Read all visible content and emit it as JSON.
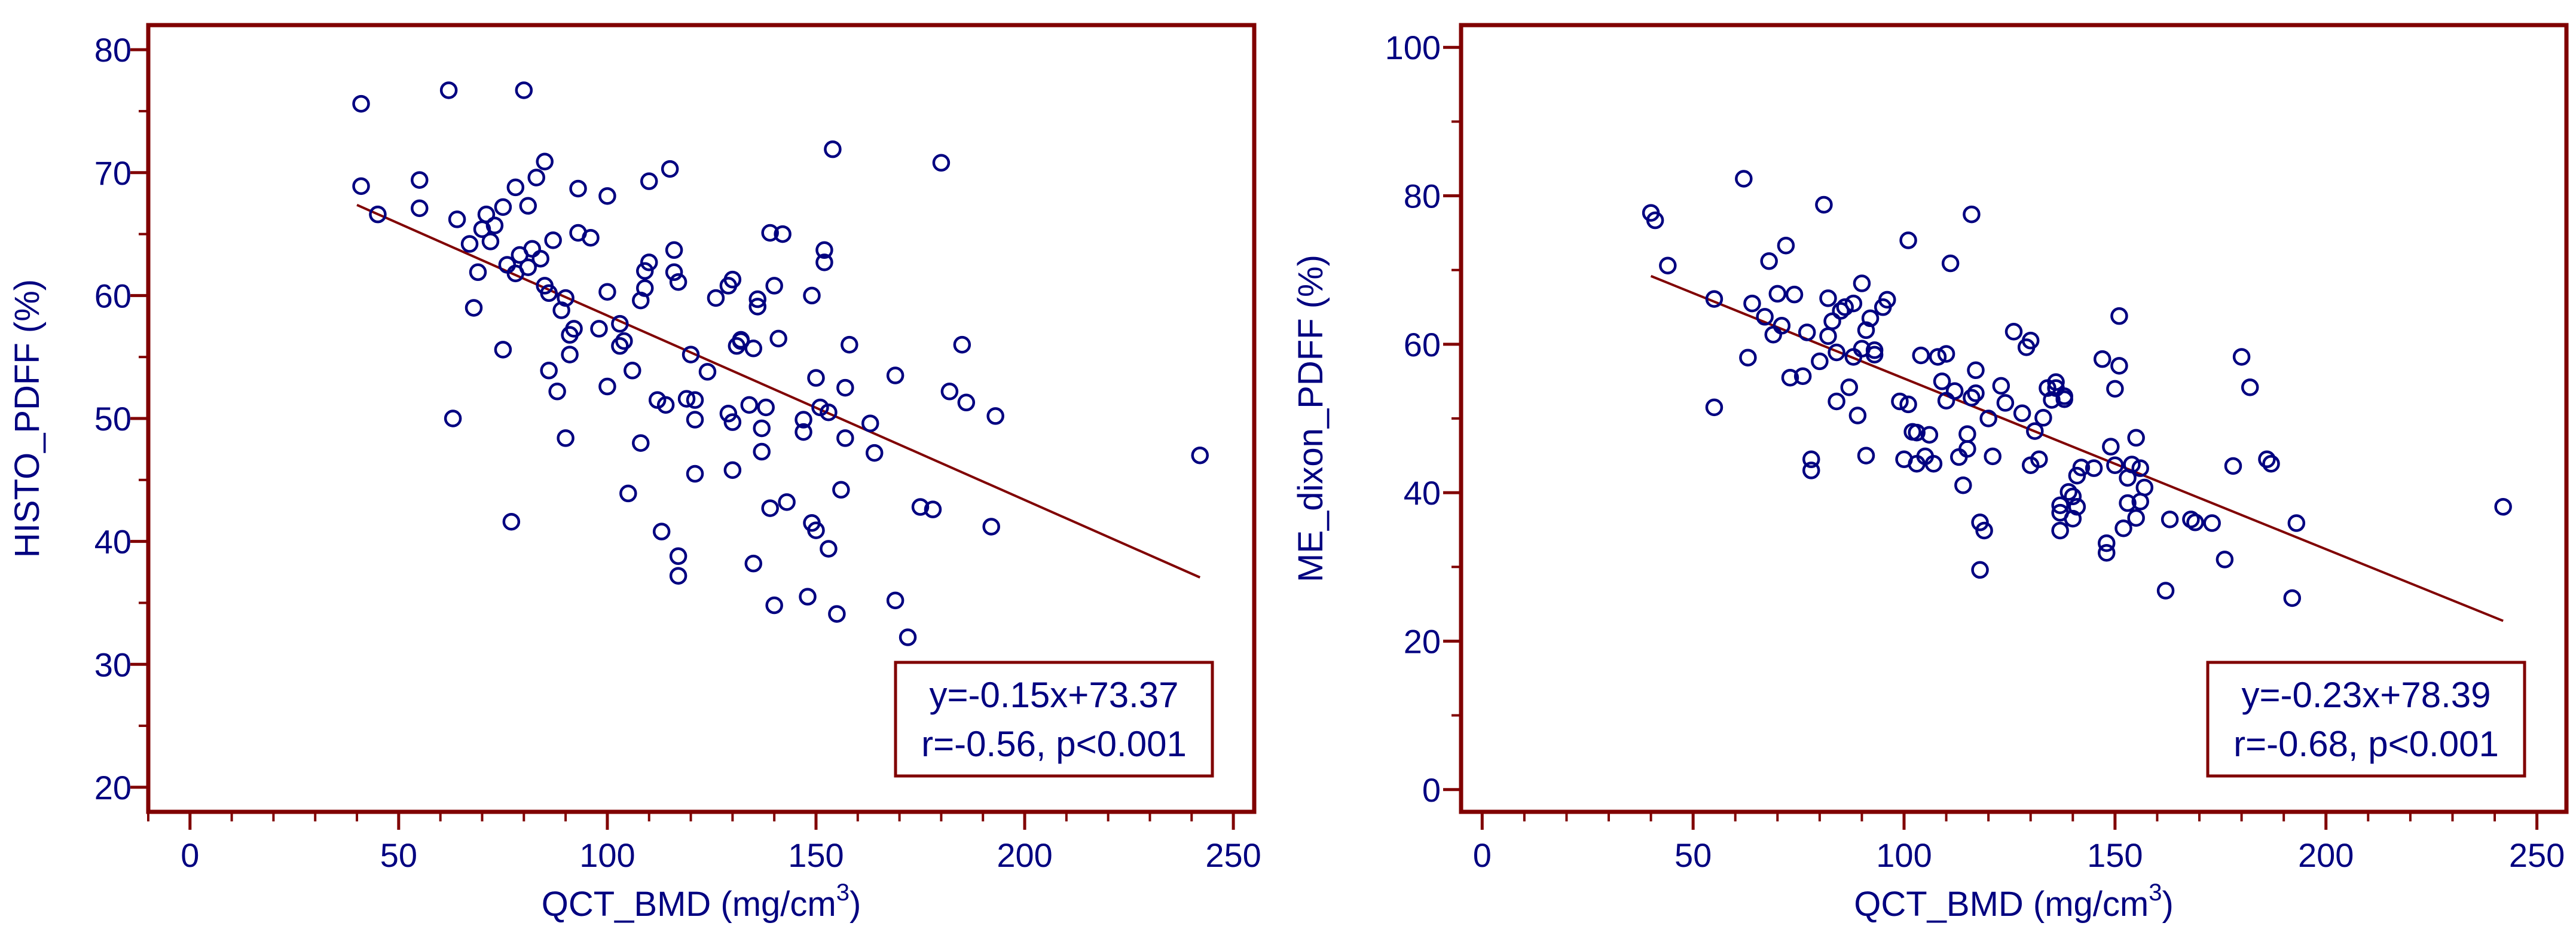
{
  "colors": {
    "frame": "#800000",
    "text": "#000080",
    "points": "#000080",
    "fit_line": "#800000"
  },
  "chart_data": [
    {
      "type": "scatter",
      "xlabel": "QCT_BMD (mg/cm",
      "xlabel_sup": "3",
      "xlabel_end": ")",
      "ylabel": "HISTO_PDFF (%)",
      "xlim": [
        -10,
        255
      ],
      "ylim": [
        18,
        82
      ],
      "xticks": [
        "0",
        "50",
        "100",
        "150",
        "200",
        "250"
      ],
      "xtick_values": [
        0,
        50,
        100,
        150,
        200,
        250
      ],
      "yticks": [
        "20",
        "30",
        "40",
        "50",
        "60",
        "70",
        "80"
      ],
      "ytick_values": [
        20,
        30,
        40,
        50,
        60,
        70,
        80
      ],
      "grid": false,
      "fit": {
        "slope": -0.15,
        "intercept": 73.37,
        "x_range": [
          40,
          242
        ]
      },
      "annotation": [
        "y=-0.15x+73.37",
        "r=-0.56, p<0.001"
      ],
      "annotation_position": "bottom-right",
      "points": [
        [
          41,
          68.9
        ],
        [
          41,
          75.6
        ],
        [
          45,
          66.6
        ],
        [
          55,
          67.1
        ],
        [
          55,
          69.4
        ],
        [
          62,
          76.7
        ],
        [
          63,
          50.0
        ],
        [
          64,
          66.2
        ],
        [
          67,
          64.2
        ],
        [
          68,
          59.0
        ],
        [
          69,
          61.9
        ],
        [
          70,
          65.4
        ],
        [
          71,
          66.6
        ],
        [
          72,
          64.4
        ],
        [
          73,
          65.7
        ],
        [
          75,
          55.6
        ],
        [
          75,
          67.2
        ],
        [
          76,
          62.5
        ],
        [
          77,
          41.6
        ],
        [
          78,
          68.8
        ],
        [
          78,
          61.8
        ],
        [
          79,
          63.3
        ],
        [
          80,
          76.7
        ],
        [
          81,
          62.3
        ],
        [
          81,
          67.3
        ],
        [
          82,
          63.8
        ],
        [
          83,
          69.6
        ],
        [
          84,
          63.0
        ],
        [
          85,
          70.9
        ],
        [
          85,
          60.8
        ],
        [
          86,
          60.2
        ],
        [
          86,
          53.9
        ],
        [
          87,
          64.5
        ],
        [
          88,
          52.2
        ],
        [
          89,
          58.8
        ],
        [
          90,
          59.8
        ],
        [
          90,
          48.4
        ],
        [
          91,
          55.2
        ],
        [
          91,
          56.8
        ],
        [
          92,
          57.3
        ],
        [
          93,
          65.1
        ],
        [
          93,
          68.7
        ],
        [
          96,
          64.7
        ],
        [
          98,
          57.3
        ],
        [
          100,
          68.1
        ],
        [
          100,
          52.6
        ],
        [
          100,
          60.3
        ],
        [
          103,
          55.9
        ],
        [
          103,
          57.7
        ],
        [
          104,
          56.3
        ],
        [
          105,
          43.9
        ],
        [
          106,
          53.9
        ],
        [
          108,
          48.0
        ],
        [
          108,
          59.6
        ],
        [
          109,
          60.6
        ],
        [
          109,
          62.0
        ],
        [
          110,
          62.7
        ],
        [
          110,
          69.3
        ],
        [
          112,
          51.5
        ],
        [
          113,
          40.8
        ],
        [
          114,
          51.1
        ],
        [
          115,
          70.3
        ],
        [
          116,
          63.7
        ],
        [
          116,
          61.9
        ],
        [
          117,
          61.1
        ],
        [
          117,
          38.8
        ],
        [
          117,
          37.2
        ],
        [
          119,
          51.6
        ],
        [
          120,
          55.2
        ],
        [
          121,
          45.5
        ],
        [
          121,
          49.9
        ],
        [
          121,
          51.5
        ],
        [
          124,
          53.8
        ],
        [
          126,
          59.8
        ],
        [
          129,
          50.4
        ],
        [
          129,
          60.8
        ],
        [
          130,
          49.7
        ],
        [
          130,
          61.3
        ],
        [
          130,
          45.8
        ],
        [
          131,
          55.9
        ],
        [
          132,
          56.3
        ],
        [
          132,
          56.4
        ],
        [
          134,
          51.1
        ],
        [
          135,
          55.7
        ],
        [
          135,
          38.2
        ],
        [
          136,
          59.1
        ],
        [
          136,
          59.7
        ],
        [
          137,
          49.2
        ],
        [
          137,
          47.3
        ],
        [
          138,
          50.9
        ],
        [
          139,
          65.1
        ],
        [
          139,
          42.7
        ],
        [
          140,
          60.8
        ],
        [
          140,
          34.8
        ],
        [
          141,
          56.5
        ],
        [
          142,
          65.0
        ],
        [
          143,
          43.2
        ],
        [
          147,
          48.9
        ],
        [
          147,
          49.9
        ],
        [
          148,
          35.5
        ],
        [
          149,
          60.0
        ],
        [
          149,
          41.5
        ],
        [
          150,
          53.3
        ],
        [
          150,
          40.9
        ],
        [
          151,
          50.9
        ],
        [
          152,
          63.7
        ],
        [
          152,
          62.7
        ],
        [
          153,
          50.5
        ],
        [
          153,
          39.4
        ],
        [
          154,
          71.9
        ],
        [
          155,
          34.1
        ],
        [
          156,
          44.2
        ],
        [
          157,
          48.4
        ],
        [
          157,
          52.5
        ],
        [
          158,
          56.0
        ],
        [
          163,
          49.6
        ],
        [
          164,
          47.2
        ],
        [
          169,
          53.5
        ],
        [
          169,
          35.2
        ],
        [
          172,
          32.2
        ],
        [
          175,
          42.8
        ],
        [
          178,
          42.6
        ],
        [
          180,
          70.8
        ],
        [
          182,
          52.2
        ],
        [
          185,
          56.0
        ],
        [
          186,
          51.3
        ],
        [
          192,
          41.2
        ],
        [
          193,
          50.2
        ],
        [
          242,
          47.0
        ]
      ]
    },
    {
      "type": "scatter",
      "xlabel": "QCT_BMD (mg/cm",
      "xlabel_sup": "3",
      "xlabel_end": ")",
      "ylabel": "ME_dixon_PDFF (%)",
      "xlim": [
        -5,
        257
      ],
      "ylim": [
        -3,
        103
      ],
      "xticks": [
        "0",
        "50",
        "100",
        "150",
        "200",
        "250"
      ],
      "xtick_values": [
        0,
        50,
        100,
        150,
        200,
        250
      ],
      "yticks": [
        "0",
        "20",
        "40",
        "60",
        "80",
        "100"
      ],
      "ytick_values": [
        0,
        20,
        40,
        60,
        80,
        100
      ],
      "grid": false,
      "fit": {
        "slope": -0.23,
        "intercept": 78.39,
        "x_range": [
          40,
          242
        ]
      },
      "annotation": [
        "y=-0.23x+78.39",
        "r=-0.68, p<0.001"
      ],
      "annotation_position": "bottom-right",
      "points": [
        [
          40,
          77.7
        ],
        [
          41,
          76.7
        ],
        [
          44,
          70.6
        ],
        [
          55,
          66.1
        ],
        [
          55,
          51.5
        ],
        [
          62,
          82.3
        ],
        [
          63,
          58.2
        ],
        [
          64,
          65.5
        ],
        [
          67,
          63.7
        ],
        [
          68,
          71.2
        ],
        [
          69,
          61.3
        ],
        [
          70,
          66.8
        ],
        [
          71,
          62.5
        ],
        [
          72,
          73.3
        ],
        [
          73,
          55.5
        ],
        [
          74,
          66.7
        ],
        [
          76,
          55.7
        ],
        [
          77,
          61.6
        ],
        [
          78,
          43.0
        ],
        [
          78,
          44.5
        ],
        [
          80,
          57.7
        ],
        [
          81,
          78.8
        ],
        [
          82,
          66.2
        ],
        [
          82,
          61.1
        ],
        [
          83,
          63.1
        ],
        [
          84,
          52.3
        ],
        [
          84,
          58.9
        ],
        [
          85,
          64.5
        ],
        [
          86,
          65.0
        ],
        [
          87,
          54.2
        ],
        [
          88,
          65.5
        ],
        [
          88,
          58.3
        ],
        [
          89,
          50.4
        ],
        [
          90,
          68.2
        ],
        [
          90,
          59.4
        ],
        [
          91,
          61.9
        ],
        [
          91,
          45.0
        ],
        [
          92,
          63.5
        ],
        [
          93,
          58.6
        ],
        [
          93,
          59.2
        ],
        [
          95,
          65.0
        ],
        [
          96,
          66.0
        ],
        [
          99,
          52.3
        ],
        [
          100,
          44.5
        ],
        [
          101,
          74.0
        ],
        [
          101,
          51.9
        ],
        [
          102,
          48.2
        ],
        [
          103,
          43.9
        ],
        [
          103,
          48.1
        ],
        [
          104,
          58.5
        ],
        [
          105,
          44.9
        ],
        [
          106,
          47.8
        ],
        [
          107,
          43.9
        ],
        [
          108,
          58.3
        ],
        [
          109,
          55.0
        ],
        [
          110,
          52.4
        ],
        [
          110,
          58.7
        ],
        [
          111,
          70.9
        ],
        [
          112,
          53.7
        ],
        [
          113,
          44.8
        ],
        [
          114,
          41.0
        ],
        [
          115,
          47.9
        ],
        [
          115,
          45.9
        ],
        [
          116,
          77.5
        ],
        [
          116,
          52.8
        ],
        [
          117,
          53.4
        ],
        [
          117,
          56.5
        ],
        [
          118,
          36.0
        ],
        [
          118,
          29.6
        ],
        [
          119,
          34.9
        ],
        [
          120,
          50.0
        ],
        [
          121,
          44.9
        ],
        [
          123,
          54.4
        ],
        [
          124,
          52.1
        ],
        [
          126,
          61.7
        ],
        [
          128,
          50.7
        ],
        [
          129,
          59.6
        ],
        [
          130,
          60.5
        ],
        [
          130,
          43.7
        ],
        [
          131,
          48.3
        ],
        [
          132,
          44.5
        ],
        [
          133,
          50.1
        ],
        [
          134,
          54.1
        ],
        [
          135,
          52.5
        ],
        [
          136,
          54.1
        ],
        [
          136,
          54.9
        ],
        [
          137,
          38.3
        ],
        [
          137,
          37.3
        ],
        [
          137,
          34.9
        ],
        [
          138,
          52.6
        ],
        [
          138,
          53.0
        ],
        [
          139,
          40.1
        ],
        [
          140,
          39.5
        ],
        [
          140,
          36.5
        ],
        [
          141,
          42.3
        ],
        [
          141,
          38.1
        ],
        [
          142,
          43.4
        ],
        [
          145,
          43.3
        ],
        [
          147,
          58.0
        ],
        [
          148,
          33.2
        ],
        [
          148,
          31.9
        ],
        [
          149,
          46.2
        ],
        [
          150,
          54.0
        ],
        [
          150,
          43.7
        ],
        [
          151,
          57.1
        ],
        [
          151,
          63.8
        ],
        [
          152,
          35.2
        ],
        [
          153,
          42.0
        ],
        [
          153,
          38.6
        ],
        [
          154,
          43.8
        ],
        [
          155,
          36.6
        ],
        [
          155,
          47.4
        ],
        [
          156,
          43.3
        ],
        [
          156,
          38.8
        ],
        [
          157,
          40.7
        ],
        [
          162,
          26.8
        ],
        [
          163,
          36.4
        ],
        [
          168,
          36.4
        ],
        [
          169,
          36.0
        ],
        [
          173,
          35.9
        ],
        [
          176,
          31.0
        ],
        [
          178,
          43.6
        ],
        [
          180,
          58.3
        ],
        [
          182,
          54.2
        ],
        [
          186,
          44.5
        ],
        [
          187,
          43.9
        ],
        [
          192,
          25.8
        ],
        [
          193,
          35.9
        ],
        [
          242,
          38.1
        ]
      ]
    }
  ]
}
